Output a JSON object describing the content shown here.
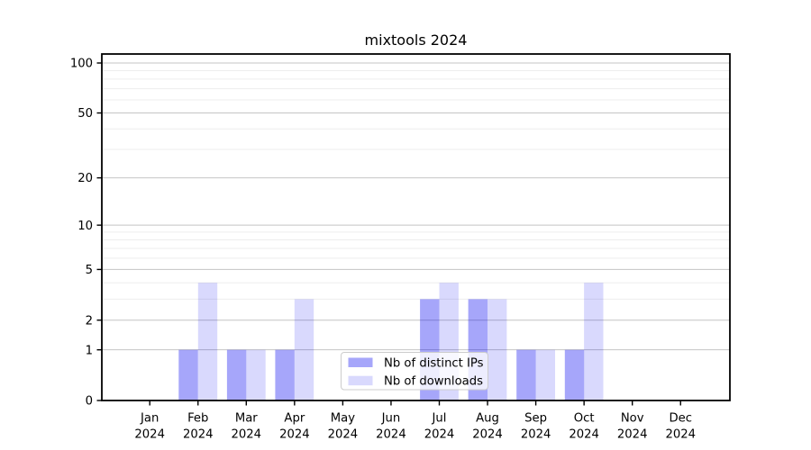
{
  "chart_data": {
    "type": "bar",
    "title": "mixtools 2024",
    "categories": [
      "Jan",
      "Feb",
      "Mar",
      "Apr",
      "May",
      "Jun",
      "Jul",
      "Aug",
      "Sep",
      "Oct",
      "Nov",
      "Dec"
    ],
    "category_year": "2024",
    "series": [
      {
        "name": "Nb of distinct IPs",
        "color_hex": "#a6a6f7",
        "fill": "rgba(0,0,240,0.35)",
        "values": [
          0,
          1,
          1,
          1,
          0,
          0,
          3,
          3,
          1,
          1,
          0,
          0
        ]
      },
      {
        "name": "Nb of downloads",
        "color_hex": "#d9d9f8",
        "fill": "rgba(0,0,240,0.15)",
        "values": [
          0,
          4,
          1,
          3,
          0,
          0,
          4,
          3,
          1,
          4,
          0,
          0
        ]
      }
    ],
    "yscale": "log1p",
    "ylim": [
      0,
      100
    ],
    "yticks": [
      0,
      1,
      2,
      5,
      10,
      20,
      50,
      100
    ],
    "minor_gridlines": [
      3,
      4,
      6,
      7,
      8,
      9,
      30,
      40,
      60,
      70,
      80,
      90
    ],
    "xlabel": "",
    "ylabel": "",
    "grid": true,
    "legend_position": "lower-center",
    "colors": {
      "major_grid": "#c4c4c4",
      "minor_grid": "#ededed",
      "axis": "#000000",
      "tick_text": "#000000",
      "legend_border": "#cccccc",
      "legend_background": "rgba(255,255,255,0.8)",
      "figure_background": "#ffffff"
    }
  }
}
